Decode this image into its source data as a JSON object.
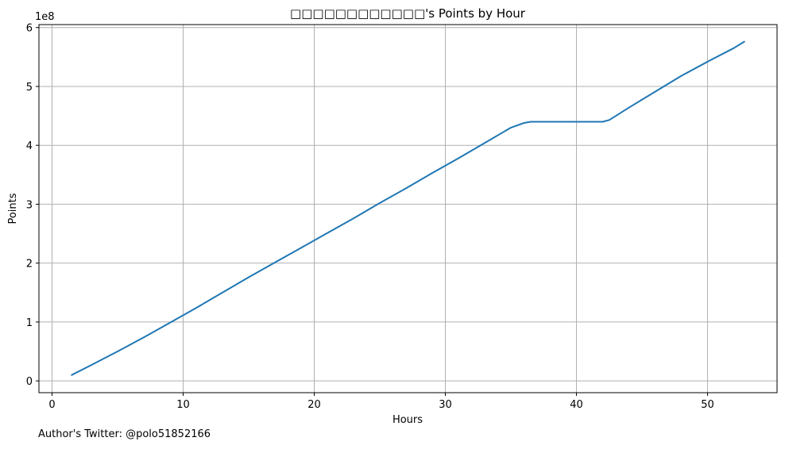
{
  "chart_data": {
    "type": "line",
    "title": "□□□□□□□□□□□□'s Points by Hour",
    "xlabel": "Hours",
    "ylabel": "Points",
    "y_multiplier_label": "1e8",
    "xlim": [
      -1,
      55.3
    ],
    "ylim": [
      -0.2,
      6.05
    ],
    "y_units": "1e8 points",
    "xticks": [
      0,
      10,
      20,
      30,
      40,
      50
    ],
    "yticks": [
      0,
      1,
      2,
      3,
      4,
      5,
      6
    ],
    "xtick_labels": [
      "0",
      "10",
      "20",
      "30",
      "40",
      "50"
    ],
    "ytick_labels": [
      "0",
      "1",
      "2",
      "3",
      "4",
      "5",
      "6"
    ],
    "grid": true,
    "series": [
      {
        "color": "#1f77b4",
        "x": [
          1.5,
          3,
          5,
          7,
          9,
          11,
          13,
          15,
          17,
          19,
          21,
          23,
          25,
          27,
          29,
          31,
          33,
          35,
          36,
          36.5,
          38,
          40,
          42,
          42.5,
          44,
          46,
          48,
          50,
          52,
          52.8
        ],
        "y": [
          0.1,
          0.27,
          0.5,
          0.74,
          0.99,
          1.24,
          1.5,
          1.76,
          2.01,
          2.26,
          2.51,
          2.76,
          3.02,
          3.27,
          3.53,
          3.78,
          4.04,
          4.3,
          4.38,
          4.4,
          4.4,
          4.4,
          4.4,
          4.43,
          4.64,
          4.91,
          5.18,
          5.42,
          5.65,
          5.76
        ]
      }
    ]
  },
  "caption": "Author's Twitter: @polo51852166"
}
